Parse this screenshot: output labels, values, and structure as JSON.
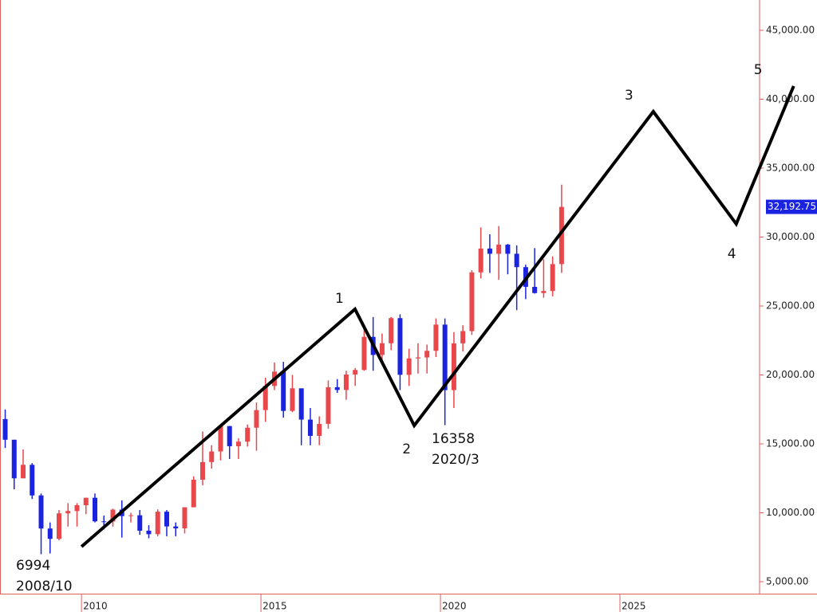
{
  "chart_data": {
    "type": "candlestick",
    "up_color": "#e8474c",
    "down_color": "#1a23e0",
    "xlim": [
      2007.73,
      2030.49
    ],
    "ylim": [
      4133,
      47197
    ],
    "xticks": [
      2010,
      2015,
      2020,
      2025
    ],
    "yticks": [
      {
        "value": 5000,
        "label": "5,000.00"
      },
      {
        "value": 10000,
        "label": "10,000.00"
      },
      {
        "value": 15000,
        "label": "15,000.00"
      },
      {
        "value": 20000,
        "label": "20,000.00"
      },
      {
        "value": 25000,
        "label": "25,000.00"
      },
      {
        "value": 30000,
        "label": "30,000.00"
      },
      {
        "value": 35000,
        "label": "35,000.00"
      },
      {
        "value": 40000,
        "label": "40,000.00"
      },
      {
        "value": 45000,
        "label": "45,000.00"
      }
    ],
    "candles": {
      "x": [
        2007.875,
        2008.125,
        2008.375,
        2008.625,
        2008.875,
        2009.125,
        2009.375,
        2009.625,
        2009.875,
        2010.125,
        2010.375,
        2010.625,
        2010.875,
        2011.125,
        2011.375,
        2011.625,
        2011.875,
        2012.125,
        2012.375,
        2012.625,
        2012.875,
        2013.125,
        2013.375,
        2013.625,
        2013.875,
        2014.125,
        2014.375,
        2014.625,
        2014.875,
        2015.125,
        2015.375,
        2015.625,
        2015.875,
        2016.125,
        2016.375,
        2016.625,
        2016.875,
        2017.125,
        2017.375,
        2017.625,
        2017.875,
        2018.125,
        2018.375,
        2018.625,
        2018.875,
        2019.125,
        2019.375,
        2019.625,
        2019.875,
        2020.125,
        2020.375,
        2020.625,
        2020.875,
        2021.125,
        2021.375,
        2021.625,
        2021.875,
        2022.125,
        2022.375,
        2022.625,
        2022.875,
        2023.125,
        2023.375
      ],
      "open": [
        16800,
        15300,
        12500,
        13480,
        11260,
        8860,
        8110,
        9960,
        10130,
        10550,
        11090,
        9380,
        9370,
        10230,
        9760,
        9820,
        8700,
        8450,
        10080,
        9010,
        8870,
        10400,
        12400,
        13680,
        14450,
        16290,
        14830,
        15160,
        16170,
        17450,
        19200,
        20240,
        17390,
        19030,
        16760,
        15580,
        16450,
        19110,
        18910,
        20030,
        20360,
        22760,
        21450,
        22300,
        24120,
        20010,
        21200,
        21270,
        21750,
        23650,
        18900,
        22290,
        23180,
        27440,
        29170,
        28790,
        29450,
        28790,
        27820,
        26390,
        25940,
        26090,
        28040
      ],
      "high": [
        17500,
        15300,
        14600,
        13600,
        11400,
        9300,
        10200,
        10700,
        10700,
        11100,
        11400,
        9800,
        10300,
        10900,
        10000,
        10200,
        9100,
        10250,
        10200,
        9300,
        10400,
        12650,
        15900,
        14900,
        16300,
        16300,
        15400,
        16400,
        18000,
        19800,
        20900,
        20950,
        20000,
        19000,
        17600,
        17000,
        19600,
        19700,
        20300,
        20500,
        23400,
        24200,
        23000,
        24200,
        24400,
        21900,
        22300,
        22200,
        24100,
        24100,
        23100,
        23600,
        27600,
        30700,
        30200,
        30800,
        29500,
        29400,
        28000,
        29200,
        28400,
        28600,
        33800
      ],
      "low": [
        14700,
        11700,
        12500,
        11000,
        6994,
        7050,
        8000,
        9000,
        9000,
        9900,
        9300,
        8800,
        9000,
        8200,
        9300,
        8400,
        8150,
        8300,
        8300,
        8300,
        8500,
        10400,
        12000,
        13200,
        13800,
        13900,
        13900,
        14800,
        14500,
        16600,
        18900,
        16900,
        17300,
        14900,
        14900,
        14900,
        16100,
        18700,
        18200,
        19200,
        20300,
        20300,
        21000,
        21800,
        18900,
        19200,
        20100,
        20100,
        21300,
        16358,
        17600,
        21700,
        22900,
        27000,
        27400,
        26900,
        27300,
        24700,
        25500,
        25900,
        25600,
        25700,
        27400
      ],
      "close": [
        15300,
        12500,
        13480,
        11260,
        8860,
        8110,
        9960,
        10130,
        10550,
        11090,
        9380,
        9370,
        10230,
        9760,
        9820,
        8700,
        8450,
        10080,
        9010,
        8870,
        10400,
        12400,
        13680,
        14450,
        16290,
        14830,
        15160,
        16170,
        17450,
        19200,
        20240,
        17390,
        19030,
        16760,
        15580,
        16450,
        19110,
        18910,
        20030,
        20360,
        22760,
        21450,
        22300,
        24120,
        20010,
        21200,
        21270,
        21750,
        23650,
        18900,
        22290,
        23180,
        27440,
        29170,
        28790,
        29450,
        28790,
        27820,
        26390,
        25940,
        26090,
        28040,
        32190
      ]
    },
    "wave": {
      "color": "#000000",
      "x": [
        2010.0,
        2017.62,
        2019.27,
        2025.93,
        2028.24,
        2029.84
      ],
      "values": [
        7543,
        24769,
        16329,
        39104,
        30954,
        40954
      ],
      "labels": [
        null,
        "1",
        "2",
        "3",
        "4",
        "5"
      ]
    },
    "annotations": [
      {
        "lines": [
          "6994",
          "2008/10"
        ]
      },
      {
        "lines": [
          "16358",
          "2020/3"
        ]
      }
    ],
    "last_price": {
      "value": 32192.75,
      "label": "32,192.75",
      "color": "#1a23e0"
    }
  }
}
